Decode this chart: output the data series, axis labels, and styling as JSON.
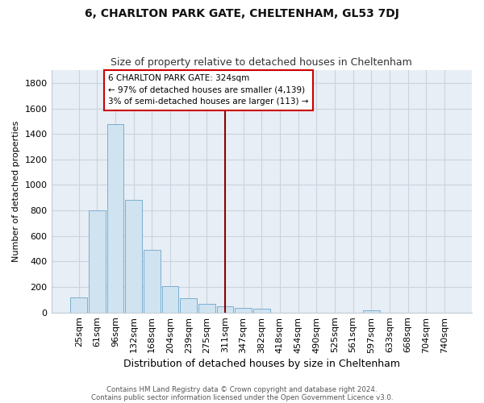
{
  "title": "6, CHARLTON PARK GATE, CHELTENHAM, GL53 7DJ",
  "subtitle": "Size of property relative to detached houses in Cheltenham",
  "xlabel": "Distribution of detached houses by size in Cheltenham",
  "ylabel": "Number of detached properties",
  "bar_labels": [
    "25sqm",
    "61sqm",
    "96sqm",
    "132sqm",
    "168sqm",
    "204sqm",
    "239sqm",
    "275sqm",
    "311sqm",
    "347sqm",
    "382sqm",
    "418sqm",
    "454sqm",
    "490sqm",
    "525sqm",
    "561sqm",
    "597sqm",
    "633sqm",
    "668sqm",
    "704sqm",
    "740sqm"
  ],
  "bar_values": [
    120,
    800,
    1480,
    880,
    490,
    205,
    110,
    68,
    50,
    37,
    27,
    0,
    0,
    0,
    0,
    0,
    17,
    0,
    0,
    0,
    0
  ],
  "bar_color": "#d0e3f0",
  "bar_edgecolor": "#7aaed0",
  "ylim": [
    0,
    1900
  ],
  "yticks": [
    0,
    200,
    400,
    600,
    800,
    1000,
    1200,
    1400,
    1600,
    1800
  ],
  "vline_color": "#8b0000",
  "annotation_title": "6 CHARLTON PARK GATE: 324sqm",
  "annotation_line1": "← 97% of detached houses are smaller (4,139)",
  "annotation_line2": "3% of semi-detached houses are larger (113) →",
  "annotation_box_color": "#cc0000",
  "footer1": "Contains HM Land Registry data © Crown copyright and database right 2024.",
  "footer2": "Contains public sector information licensed under the Open Government Licence v3.0.",
  "plot_bg_color": "#e8eef5",
  "fig_bg_color": "#ffffff",
  "grid_color": "#c8d4e0",
  "figsize": [
    6.0,
    5.0
  ],
  "dpi": 100
}
